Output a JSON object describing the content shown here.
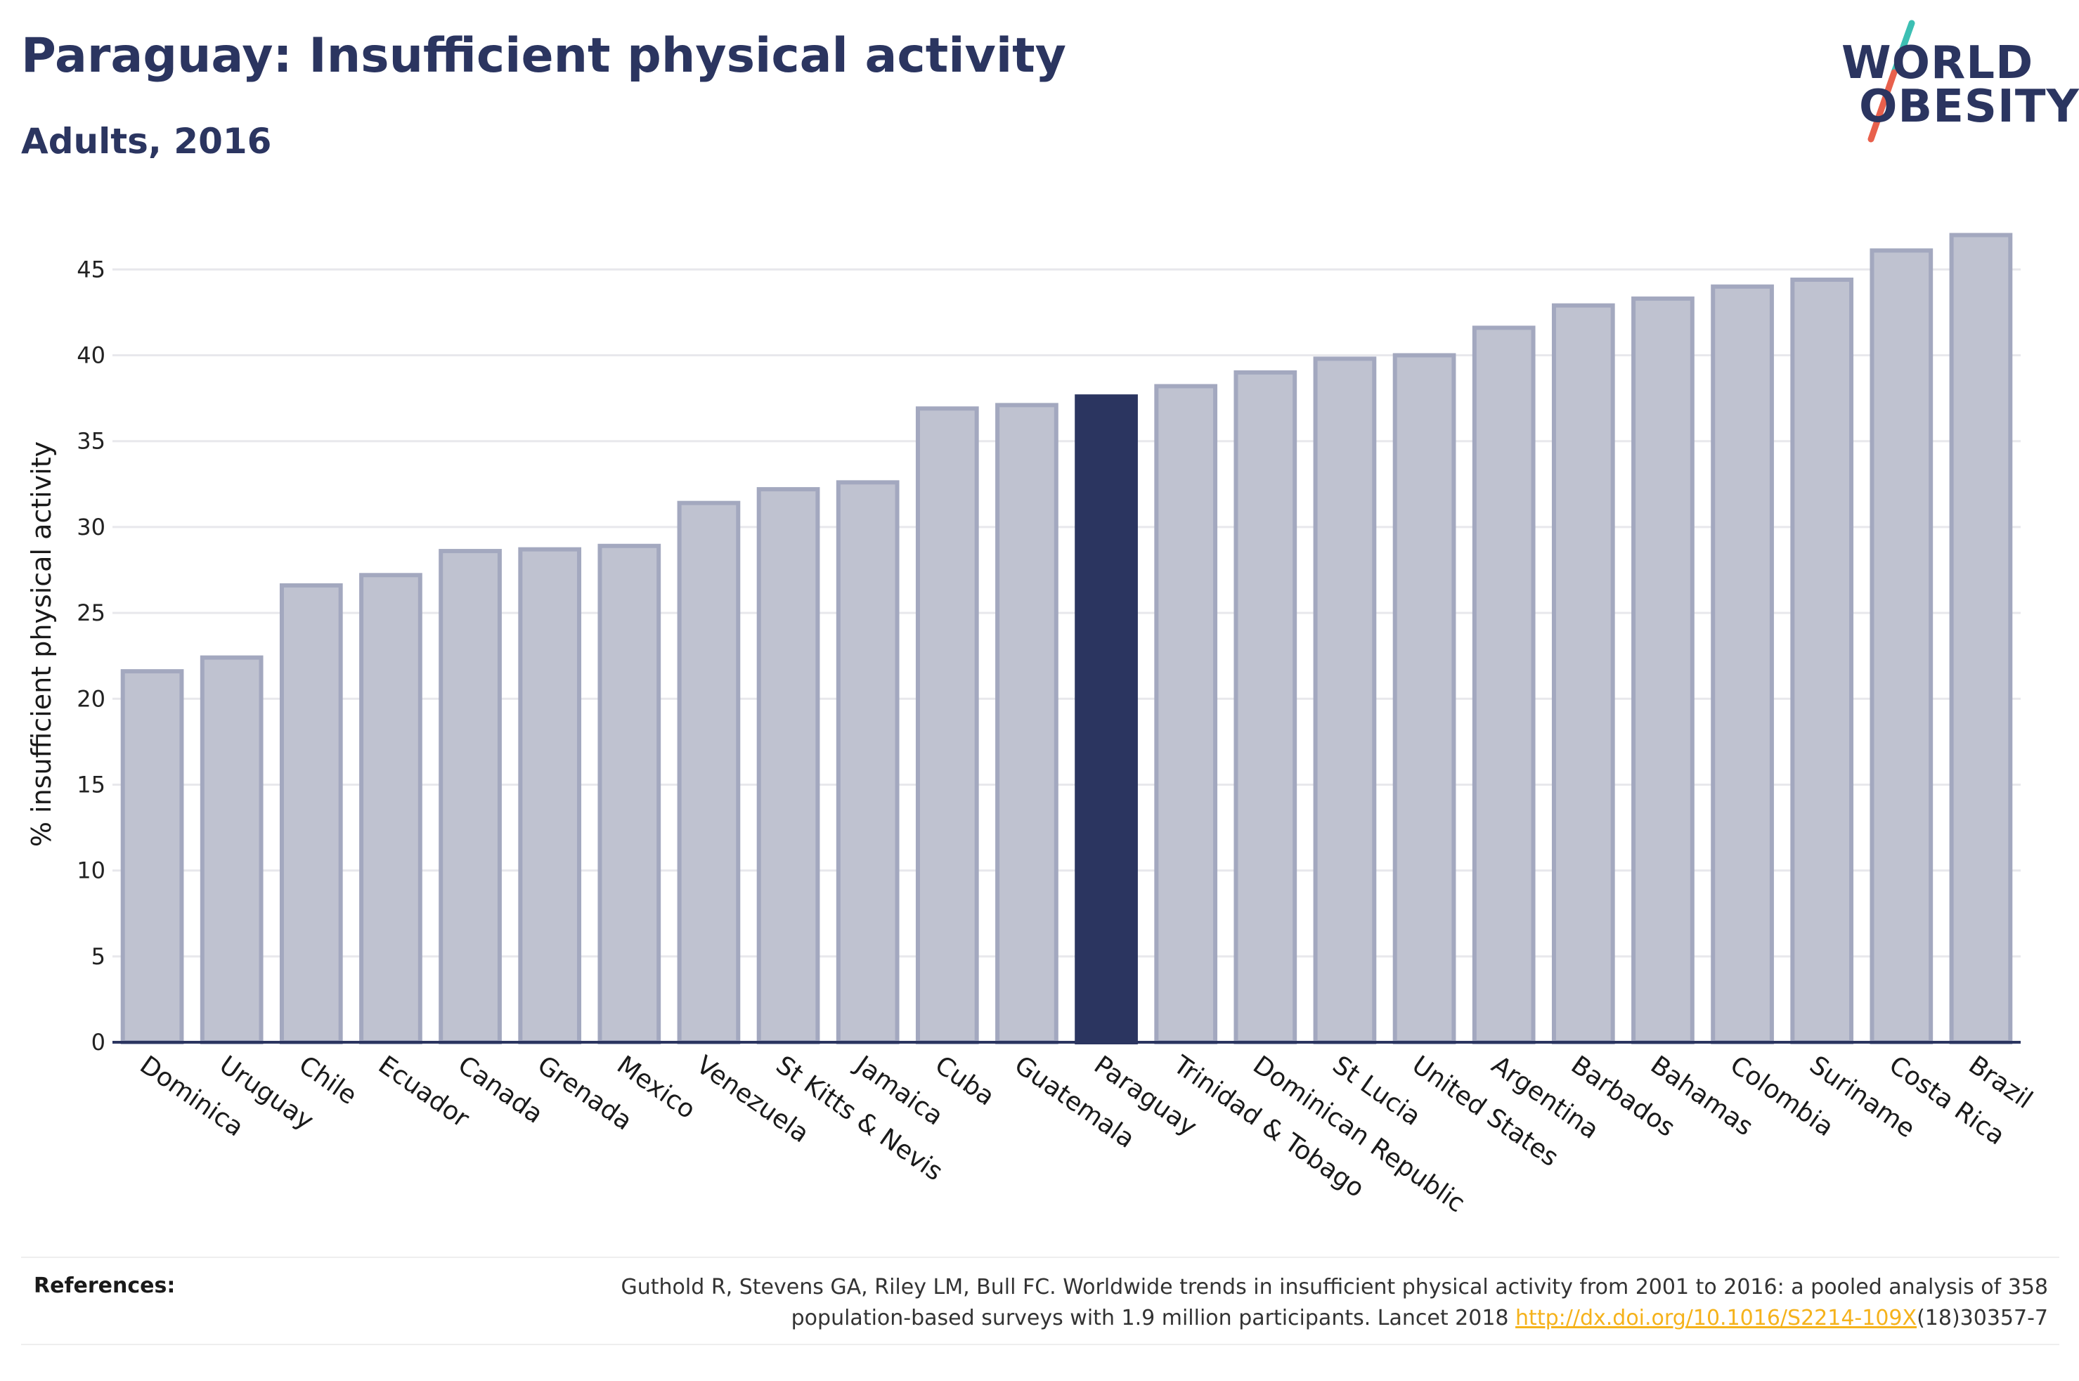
{
  "header": {
    "title": "Paraguay: Insufficient physical activity",
    "subtitle": "Adults, 2016"
  },
  "logo": {
    "line1": "WORLD",
    "line2": "OBESITY",
    "slash_color_top": "#3cbfb3",
    "slash_color_bottom": "#e8604c"
  },
  "chart_data": {
    "type": "bar",
    "ylabel": "% insufficient physical activity",
    "xlabel": "",
    "ylim": [
      0,
      48
    ],
    "yticks": [
      0,
      5,
      10,
      15,
      20,
      25,
      30,
      35,
      40,
      45
    ],
    "grid": true,
    "categories": [
      "Dominica",
      "Uruguay",
      "Chile",
      "Ecuador",
      "Canada",
      "Grenada",
      "Mexico",
      "Venezuela",
      "St Kitts & Nevis",
      "Jamaica",
      "Cuba",
      "Guatemala",
      "Paraguay",
      "Trinidad & Tobago",
      "Dominican Republic",
      "St Lucia",
      "United States",
      "Argentina",
      "Barbados",
      "Bahamas",
      "Colombia",
      "Suriname",
      "Costa Rica",
      "Brazil"
    ],
    "values": [
      21.6,
      22.4,
      26.6,
      27.2,
      28.6,
      28.7,
      28.9,
      31.4,
      32.2,
      32.6,
      36.9,
      37.1,
      37.6,
      38.2,
      39.0,
      39.8,
      40.0,
      41.6,
      42.9,
      43.3,
      44.0,
      44.4,
      46.1,
      47.0
    ],
    "highlight": "Paraguay",
    "colors": {
      "bar_fill": "#bfc2d0",
      "bar_stroke": "#a3a8bf",
      "highlight": "#2b3560",
      "grid": "#e8e8ec",
      "axis": "#2b3560"
    }
  },
  "references": {
    "label": "References:",
    "text_line1": "Guthold R, Stevens GA, Riley LM, Bull FC. Worldwide trends in insufficient physical activity from 2001 to 2016: a pooled analysis of 358",
    "text_line2_before": "population-based surveys with 1.9 million participants. Lancet 2018 ",
    "link": "http://dx.doi.org/10.1016/S2214-109X",
    "text_line2_after": "(18)30357-7"
  }
}
